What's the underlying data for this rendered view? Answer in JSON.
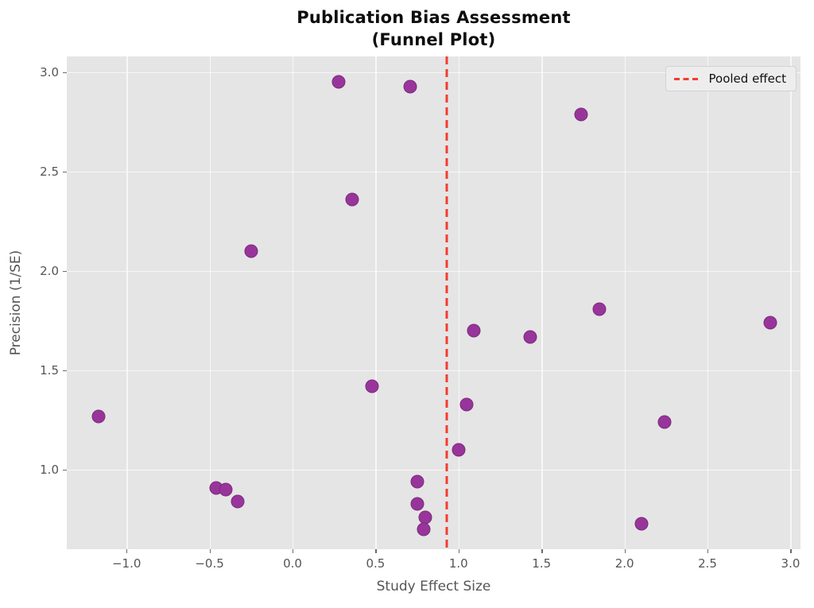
{
  "title": {
    "line1": "Publication Bias Assessment",
    "line2": "(Funnel Plot)"
  },
  "legend": {
    "label": "Pooled effect"
  },
  "colors": {
    "marker_fill": "#98359A",
    "marker_edge": "#7C2B7E",
    "pooled_line": "#F53B30",
    "panel_bg": "#E5E5E5",
    "grid": "#FAFAFA",
    "tick_text": "#555555",
    "title_text": "#0D0D0D"
  },
  "chart_data": {
    "type": "scatter",
    "title": "Publication Bias Assessment (Funnel Plot)",
    "xlabel": "Study Effect Size",
    "ylabel": "Precision (1/SE)",
    "xlim": [
      -1.36,
      3.06
    ],
    "ylim": [
      0.6,
      3.08
    ],
    "xticks": [
      -1.0,
      -0.5,
      0.0,
      0.5,
      1.0,
      1.5,
      2.0,
      2.5,
      3.0
    ],
    "xtick_labels": [
      "−1.0",
      "−0.5",
      "0.0",
      "0.5",
      "1.0",
      "1.5",
      "2.0",
      "2.5",
      "3.0"
    ],
    "yticks": [
      1.0,
      1.5,
      2.0,
      2.5,
      3.0
    ],
    "ytick_labels": [
      "1.0",
      "1.5",
      "2.0",
      "2.5",
      "3.0"
    ],
    "grid": true,
    "legend_position": "upper right",
    "pooled_effect_x": 0.93,
    "series": [
      {
        "name": "studies",
        "points": [
          [
            0.28,
            2.95
          ],
          [
            0.71,
            2.93
          ],
          [
            1.74,
            2.79
          ],
          [
            0.36,
            2.36
          ],
          [
            -0.25,
            2.1
          ],
          [
            1.85,
            1.81
          ],
          [
            2.88,
            1.74
          ],
          [
            1.09,
            1.7
          ],
          [
            1.43,
            1.67
          ],
          [
            0.48,
            1.42
          ],
          [
            1.05,
            1.33
          ],
          [
            -1.17,
            1.27
          ],
          [
            2.24,
            1.24
          ],
          [
            1.0,
            1.1
          ],
          [
            0.75,
            0.94
          ],
          [
            -0.46,
            0.91
          ],
          [
            -0.4,
            0.9
          ],
          [
            -0.33,
            0.84
          ],
          [
            0.75,
            0.83
          ],
          [
            0.8,
            0.76
          ],
          [
            2.1,
            0.73
          ],
          [
            0.79,
            0.7
          ]
        ]
      }
    ]
  }
}
